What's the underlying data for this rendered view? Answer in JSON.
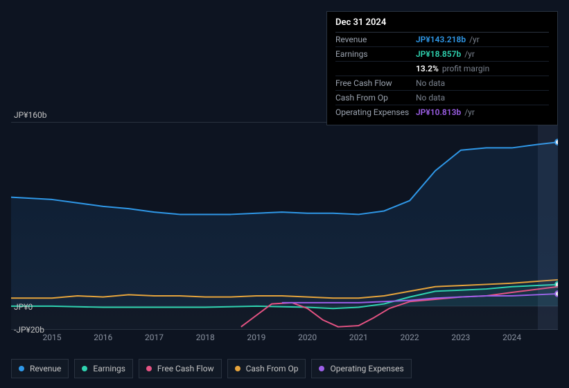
{
  "chart": {
    "type": "line",
    "background_color": "#0d1421",
    "grid_color": "#2a3340",
    "tick_color": "#8a92a0",
    "title_color": "#ffffff",
    "axis_font_size": 12,
    "x_years": [
      2015,
      2016,
      2017,
      2018,
      2019,
      2020,
      2021,
      2022,
      2023,
      2024
    ],
    "x_domain": [
      2014.2,
      2024.9
    ],
    "y_domain": [
      -20,
      160
    ],
    "y_ticks": [
      {
        "val": 160,
        "label": "JP¥160b"
      },
      {
        "val": 0,
        "label": "JP¥0"
      },
      {
        "val": -20,
        "label": "-JP¥20b"
      }
    ],
    "highlight": {
      "from": 2024.5,
      "to": 2024.9
    },
    "series": [
      {
        "key": "revenue",
        "label": "Revenue",
        "color": "#2f98e8",
        "fill_opacity": 0.1,
        "line_width": 2,
        "marker_end": true,
        "data": [
          [
            2014.2,
            95
          ],
          [
            2014.6,
            94
          ],
          [
            2015,
            93
          ],
          [
            2015.5,
            90
          ],
          [
            2016,
            87
          ],
          [
            2016.5,
            85
          ],
          [
            2017,
            82
          ],
          [
            2017.5,
            80
          ],
          [
            2018,
            80
          ],
          [
            2018.5,
            80
          ],
          [
            2019,
            81
          ],
          [
            2019.5,
            82
          ],
          [
            2020,
            81
          ],
          [
            2020.5,
            81
          ],
          [
            2021,
            80
          ],
          [
            2021.5,
            83
          ],
          [
            2022,
            92
          ],
          [
            2022.5,
            118
          ],
          [
            2023,
            136
          ],
          [
            2023.5,
            138
          ],
          [
            2024,
            138
          ],
          [
            2024.5,
            141
          ],
          [
            2024.9,
            143
          ]
        ]
      },
      {
        "key": "earnings",
        "label": "Earnings",
        "color": "#2fd3b0",
        "fill_opacity": 0.08,
        "line_width": 2,
        "marker_end": true,
        "data": [
          [
            2014.2,
            0
          ],
          [
            2015,
            0
          ],
          [
            2016,
            -1
          ],
          [
            2017,
            -1
          ],
          [
            2018,
            -1
          ],
          [
            2019,
            0
          ],
          [
            2020,
            -1
          ],
          [
            2020.5,
            -2
          ],
          [
            2021,
            -1
          ],
          [
            2021.5,
            2
          ],
          [
            2022,
            8
          ],
          [
            2022.5,
            13
          ],
          [
            2023,
            14
          ],
          [
            2023.5,
            15
          ],
          [
            2024,
            17
          ],
          [
            2024.9,
            18.9
          ]
        ]
      },
      {
        "key": "fcf",
        "label": "Free Cash Flow",
        "color": "#e55383",
        "fill_opacity": 0,
        "line_width": 2,
        "marker_end": false,
        "data": [
          [
            2018.7,
            -18
          ],
          [
            2019,
            -8
          ],
          [
            2019.3,
            2
          ],
          [
            2019.7,
            3
          ],
          [
            2020,
            -2
          ],
          [
            2020.3,
            -12
          ],
          [
            2020.6,
            -18
          ],
          [
            2021,
            -17
          ],
          [
            2021.3,
            -10
          ],
          [
            2021.6,
            -2
          ],
          [
            2022,
            4
          ],
          [
            2022.5,
            6
          ],
          [
            2023,
            8
          ],
          [
            2023.5,
            9
          ],
          [
            2024,
            12
          ],
          [
            2024.9,
            17
          ]
        ]
      },
      {
        "key": "cfo",
        "label": "Cash From Op",
        "color": "#e6a43c",
        "fill_opacity": 0,
        "line_width": 2,
        "marker_end": false,
        "data": [
          [
            2014.2,
            7
          ],
          [
            2015,
            7
          ],
          [
            2015.5,
            9
          ],
          [
            2016,
            8
          ],
          [
            2016.5,
            10
          ],
          [
            2017,
            9
          ],
          [
            2017.5,
            9
          ],
          [
            2018,
            8
          ],
          [
            2018.5,
            8
          ],
          [
            2019,
            9
          ],
          [
            2019.5,
            9
          ],
          [
            2020,
            8
          ],
          [
            2020.5,
            7
          ],
          [
            2021,
            7
          ],
          [
            2021.5,
            9
          ],
          [
            2022,
            13
          ],
          [
            2022.5,
            17
          ],
          [
            2023,
            18
          ],
          [
            2023.5,
            19
          ],
          [
            2024,
            20
          ],
          [
            2024.9,
            23
          ]
        ]
      },
      {
        "key": "opex",
        "label": "Operating Expenses",
        "color": "#9d5fe8",
        "fill_opacity": 0,
        "line_width": 2,
        "marker_end": true,
        "data": [
          [
            2019.5,
            3
          ],
          [
            2020,
            3
          ],
          [
            2020.5,
            3
          ],
          [
            2021,
            3
          ],
          [
            2021.5,
            4
          ],
          [
            2022,
            5
          ],
          [
            2022.5,
            7
          ],
          [
            2023,
            8
          ],
          [
            2023.5,
            9
          ],
          [
            2024,
            9
          ],
          [
            2024.9,
            10.8
          ]
        ]
      }
    ]
  },
  "info": {
    "date": "Dec 31 2024",
    "rows": [
      {
        "label": "Revenue",
        "amount": "JP¥143.218b",
        "unit": "/yr",
        "color": "#2f98e8"
      },
      {
        "label": "Earnings",
        "amount": "JP¥18.857b",
        "unit": "/yr",
        "color": "#2fd3b0"
      },
      {
        "label": "",
        "amount": "13.2%",
        "unit": "profit margin",
        "color": "#ffffff",
        "indent": true
      },
      {
        "label": "Free Cash Flow",
        "nodata": "No data"
      },
      {
        "label": "Cash From Op",
        "nodata": "No data"
      },
      {
        "label": "Operating Expenses",
        "amount": "JP¥10.813b",
        "unit": "/yr",
        "color": "#9d5fe8"
      }
    ]
  },
  "legend": [
    {
      "key": "revenue",
      "label": "Revenue",
      "color": "#2f98e8"
    },
    {
      "key": "earnings",
      "label": "Earnings",
      "color": "#2fd3b0"
    },
    {
      "key": "fcf",
      "label": "Free Cash Flow",
      "color": "#e55383"
    },
    {
      "key": "cfo",
      "label": "Cash From Op",
      "color": "#e6a43c"
    },
    {
      "key": "opex",
      "label": "Operating Expenses",
      "color": "#9d5fe8"
    }
  ]
}
